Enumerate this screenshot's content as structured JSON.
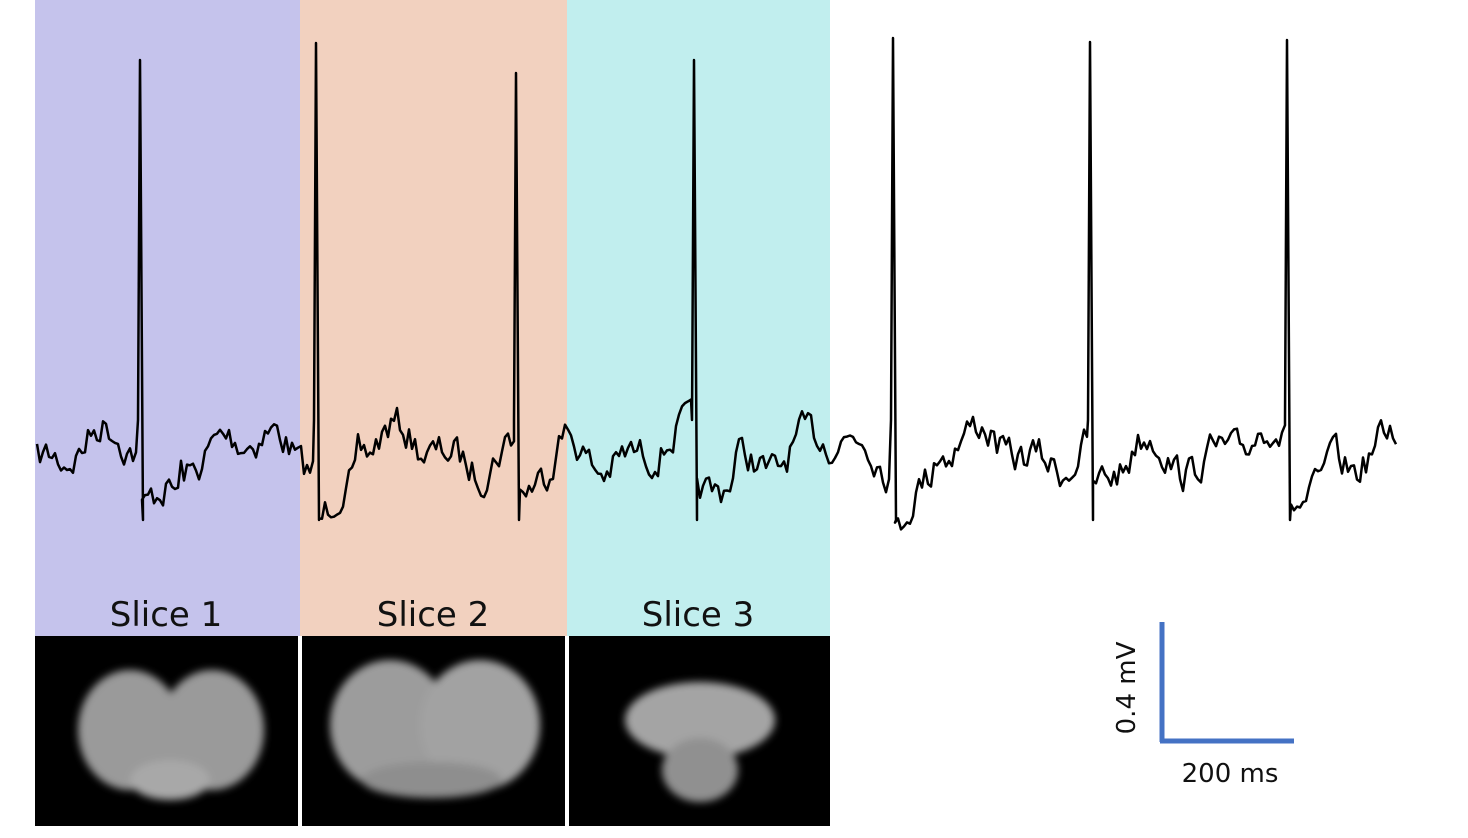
{
  "panels": [
    {
      "label": "Slice 1"
    },
    {
      "label": "Slice 2"
    },
    {
      "label": "Slice 3"
    }
  ],
  "scale_bar": {
    "vertical_label": "0.4 mV",
    "horizontal_label": "200 ms"
  }
}
